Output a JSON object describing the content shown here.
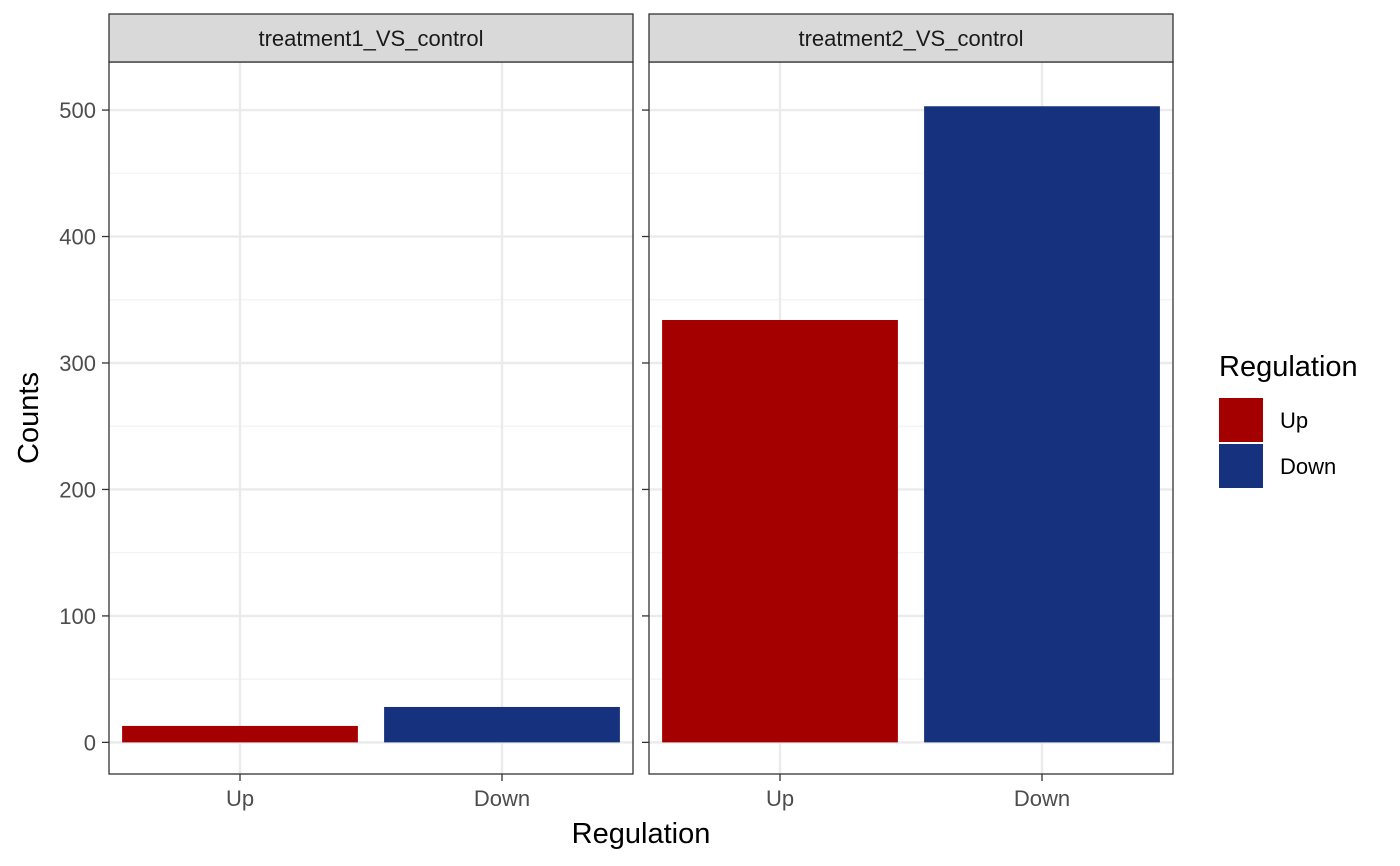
{
  "chart_data": {
    "type": "bar",
    "facets": [
      {
        "label": "treatment1_VS_control",
        "categories": [
          "Up",
          "Down"
        ],
        "values": [
          13,
          28
        ]
      },
      {
        "label": "treatment2_VS_control",
        "categories": [
          "Up",
          "Down"
        ],
        "values": [
          334,
          503
        ]
      }
    ],
    "xlabel": "Regulation",
    "ylabel": "Counts",
    "ylim": [
      -25,
      538
    ],
    "yticks": [
      0,
      100,
      200,
      300,
      400,
      500
    ],
    "grid": true,
    "legend": {
      "title": "Regulation",
      "position": "right",
      "items": [
        {
          "label": "Up",
          "color": "#A50000"
        },
        {
          "label": "Down",
          "color": "#16317D"
        }
      ]
    },
    "colors": {
      "Up": "#A50000",
      "Down": "#16317D"
    }
  }
}
